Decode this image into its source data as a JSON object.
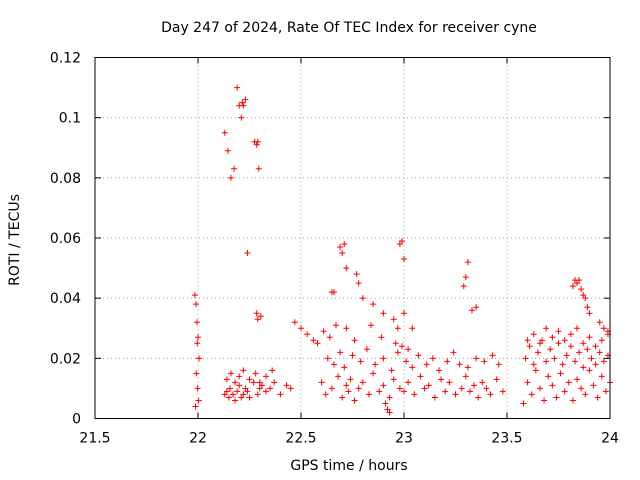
{
  "chart_data": {
    "type": "scatter",
    "title": "Day 247 of 2024, Rate Of TEC Index for receiver cyne",
    "xlabel": "GPS time / hours",
    "ylabel": "ROTI / TECUs",
    "xlim": [
      21.5,
      24
    ],
    "ylim": [
      0,
      0.12
    ],
    "x_ticks": [
      21.5,
      22,
      22.5,
      23,
      23.5,
      24
    ],
    "x_tick_labels": [
      "21.5",
      "22",
      "22.5",
      "23",
      "23.5",
      "24"
    ],
    "y_ticks": [
      0,
      0.02,
      0.04,
      0.06,
      0.08,
      0.1,
      0.12
    ],
    "y_tick_labels": [
      "0",
      "0.02",
      "0.04",
      "0.06",
      "0.08",
      "0.1",
      "0.12"
    ],
    "grid": true,
    "marker": "+",
    "marker_color": "#ff0000",
    "series": [
      {
        "name": "ROTI",
        "x": [
          21.985,
          21.99,
          21.995,
          22.0,
          21.992,
          21.998,
          22.003,
          21.988,
          21.996,
          22.005,
          22.13,
          22.14,
          22.15,
          22.155,
          22.17,
          22.18,
          22.19,
          22.2,
          22.21,
          22.22,
          22.23,
          22.24,
          22.25,
          22.27,
          22.29,
          22.3,
          22.31,
          22.33,
          22.35,
          22.37,
          22.4,
          22.43,
          22.45,
          22.14,
          22.16,
          22.18,
          22.2,
          22.22,
          22.25,
          22.28,
          22.3,
          22.33,
          22.36,
          22.13,
          22.145,
          22.16,
          22.175,
          22.19,
          22.2,
          22.21,
          22.215,
          22.22,
          22.23,
          22.24,
          22.275,
          22.285,
          22.29,
          22.295,
          22.305,
          22.285,
          22.29,
          22.6,
          22.62,
          22.65,
          22.68,
          22.7,
          22.72,
          22.73,
          22.74,
          22.76,
          22.78,
          22.8,
          22.83,
          22.85,
          22.88,
          22.9,
          22.93,
          22.95,
          22.98,
          23.0,
          23.02,
          23.05,
          23.08,
          23.1,
          23.12,
          23.15,
          23.18,
          23.2,
          23.22,
          23.25,
          23.28,
          23.3,
          23.32,
          23.34,
          23.36,
          23.38,
          23.4,
          23.42,
          23.45,
          23.48,
          22.63,
          22.66,
          22.69,
          22.71,
          22.75,
          22.79,
          22.82,
          22.86,
          22.9,
          22.94,
          22.97,
          23.01,
          23.04,
          23.07,
          23.11,
          23.14,
          23.17,
          23.21,
          23.24,
          23.27,
          23.31,
          23.35,
          23.39,
          23.43,
          23.46,
          22.69,
          22.7,
          22.71,
          22.72,
          22.98,
          22.99,
          23.0,
          23.31,
          23.3,
          23.29,
          22.77,
          22.78,
          22.8,
          22.85,
          22.9,
          22.95,
          22.97,
          23.0,
          23.33,
          23.35,
          22.65,
          22.66,
          22.72,
          22.76,
          22.84,
          22.89,
          22.96,
          22.99,
          23.02,
          23.04,
          22.47,
          22.5,
          22.53,
          22.56,
          22.58,
          22.61,
          22.64,
          22.67,
          22.91,
          22.92,
          22.93,
          23.58,
          23.6,
          23.62,
          23.64,
          23.66,
          23.68,
          23.7,
          23.72,
          23.74,
          23.76,
          23.78,
          23.8,
          23.82,
          23.84,
          23.86,
          23.88,
          23.9,
          23.92,
          23.94,
          23.96,
          23.98,
          24.0,
          23.59,
          23.61,
          23.63,
          23.65,
          23.67,
          23.69,
          23.71,
          23.73,
          23.75,
          23.77,
          23.79,
          23.81,
          23.83,
          23.85,
          23.87,
          23.89,
          23.91,
          23.93,
          23.95,
          23.97,
          23.99,
          23.6,
          23.63,
          23.66,
          23.69,
          23.72,
          23.75,
          23.78,
          23.81,
          23.84,
          23.87,
          23.9,
          23.93,
          23.96,
          23.99,
          23.82,
          23.83,
          23.84,
          23.85,
          23.86,
          23.87,
          23.88,
          23.89,
          23.9,
          23.95,
          23.97,
          23.99
        ],
        "y": [
          0.041,
          0.038,
          0.032,
          0.027,
          0.015,
          0.01,
          0.006,
          0.004,
          0.025,
          0.02,
          0.008,
          0.009,
          0.007,
          0.01,
          0.008,
          0.006,
          0.009,
          0.011,
          0.007,
          0.008,
          0.01,
          0.009,
          0.007,
          0.012,
          0.008,
          0.01,
          0.011,
          0.009,
          0.01,
          0.012,
          0.008,
          0.011,
          0.01,
          0.013,
          0.015,
          0.012,
          0.014,
          0.016,
          0.013,
          0.015,
          0.012,
          0.014,
          0.016,
          0.095,
          0.089,
          0.08,
          0.083,
          0.11,
          0.104,
          0.1,
          0.105,
          0.104,
          0.106,
          0.055,
          0.092,
          0.091,
          0.092,
          0.083,
          0.034,
          0.035,
          0.033,
          0.012,
          0.008,
          0.01,
          0.014,
          0.007,
          0.011,
          0.009,
          0.013,
          0.006,
          0.01,
          0.012,
          0.008,
          0.015,
          0.009,
          0.011,
          0.007,
          0.013,
          0.01,
          0.009,
          0.012,
          0.008,
          0.014,
          0.01,
          0.011,
          0.007,
          0.013,
          0.009,
          0.012,
          0.008,
          0.01,
          0.014,
          0.009,
          0.011,
          0.007,
          0.012,
          0.01,
          0.008,
          0.013,
          0.009,
          0.02,
          0.018,
          0.022,
          0.017,
          0.021,
          0.019,
          0.023,
          0.018,
          0.02,
          0.016,
          0.022,
          0.019,
          0.017,
          0.021,
          0.018,
          0.02,
          0.016,
          0.019,
          0.022,
          0.018,
          0.017,
          0.02,
          0.019,
          0.021,
          0.018,
          0.057,
          0.055,
          0.058,
          0.05,
          0.058,
          0.059,
          0.053,
          0.052,
          0.047,
          0.044,
          0.048,
          0.045,
          0.04,
          0.038,
          0.035,
          0.033,
          0.03,
          0.035,
          0.036,
          0.037,
          0.042,
          0.042,
          0.03,
          0.026,
          0.031,
          0.027,
          0.025,
          0.024,
          0.023,
          0.03,
          0.032,
          0.03,
          0.028,
          0.026,
          0.025,
          0.029,
          0.027,
          0.031,
          0.005,
          0.003,
          0.002,
          0.005,
          0.012,
          0.008,
          0.016,
          0.01,
          0.006,
          0.014,
          0.011,
          0.007,
          0.015,
          0.009,
          0.012,
          0.006,
          0.013,
          0.01,
          0.008,
          0.016,
          0.011,
          0.007,
          0.014,
          0.009,
          0.012,
          0.02,
          0.024,
          0.018,
          0.022,
          0.026,
          0.019,
          0.023,
          0.02,
          0.025,
          0.018,
          0.021,
          0.024,
          0.019,
          0.022,
          0.017,
          0.023,
          0.02,
          0.018,
          0.022,
          0.019,
          0.021,
          0.026,
          0.028,
          0.025,
          0.03,
          0.027,
          0.029,
          0.026,
          0.028,
          0.03,
          0.025,
          0.027,
          0.024,
          0.026,
          0.029,
          0.044,
          0.046,
          0.045,
          0.046,
          0.043,
          0.041,
          0.04,
          0.037,
          0.035,
          0.032,
          0.03,
          0.028
        ]
      }
    ]
  }
}
